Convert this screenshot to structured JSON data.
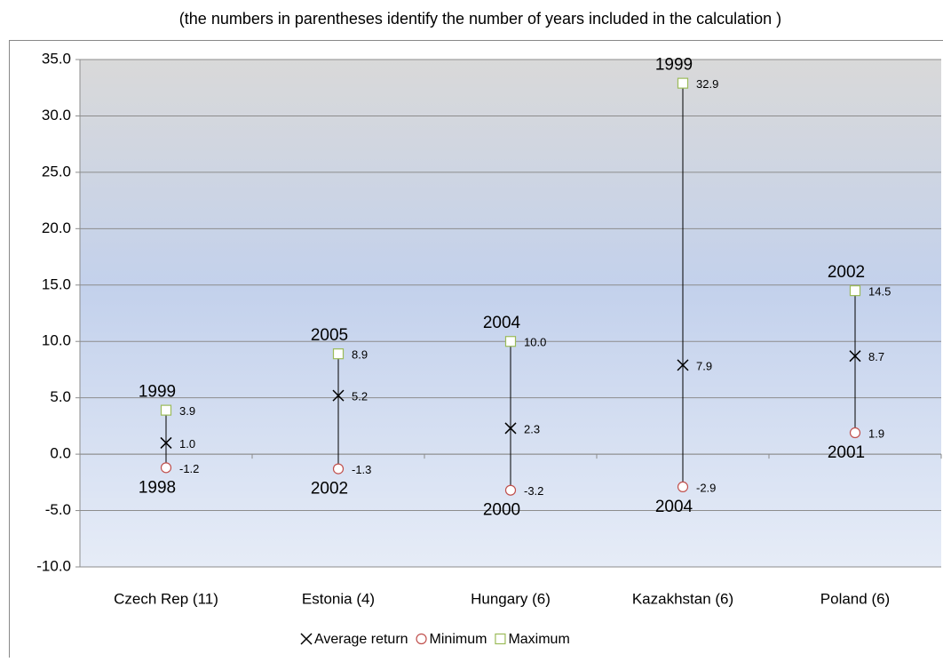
{
  "chart_data": {
    "type": "high-low",
    "subtitle": "(the numbers in parentheses identify the number of years included in the calculation )",
    "categories": [
      "Czech Rep (11)",
      "Estonia (4)",
      "Hungary (6)",
      "Kazakhstan (6)",
      "Poland (6)"
    ],
    "series": [
      {
        "name": "Average return",
        "marker": "x",
        "color": "#000000",
        "values": [
          1.0,
          5.2,
          2.3,
          7.9,
          8.7
        ],
        "value_labels": [
          "1.0",
          "5.2",
          "2.3",
          "7.9",
          "8.7"
        ]
      },
      {
        "name": "Minimum",
        "marker": "circle",
        "color": "#c0504d",
        "values": [
          -1.2,
          -1.3,
          -3.2,
          -2.9,
          1.9
        ],
        "value_labels": [
          "-1.2",
          "-1.3",
          "-3.2",
          "-2.9",
          "1.9"
        ],
        "years": [
          "1998",
          "2002",
          "2000",
          "2004",
          "2001"
        ]
      },
      {
        "name": "Maximum",
        "marker": "square",
        "color": "#9bbb59",
        "values": [
          3.9,
          8.9,
          10.0,
          32.9,
          14.5
        ],
        "value_labels": [
          "3.9",
          "8.9",
          "10.0",
          "32.9",
          "14.5"
        ],
        "years": [
          "1999",
          "2005",
          "2004",
          "1999",
          "2002"
        ]
      }
    ],
    "ylim": [
      -10,
      35
    ],
    "yticks": [
      {
        "value": -10,
        "label": "-10.0"
      },
      {
        "value": -5,
        "label": "-5.0"
      },
      {
        "value": 0,
        "label": "0.0"
      },
      {
        "value": 5,
        "label": "5.0"
      },
      {
        "value": 10,
        "label": "10.0"
      },
      {
        "value": 15,
        "label": "15.0"
      },
      {
        "value": 20,
        "label": "20.0"
      },
      {
        "value": 25,
        "label": "25.0"
      },
      {
        "value": 30,
        "label": "30.0"
      },
      {
        "value": 35,
        "label": "35.0"
      }
    ],
    "grid": true
  }
}
